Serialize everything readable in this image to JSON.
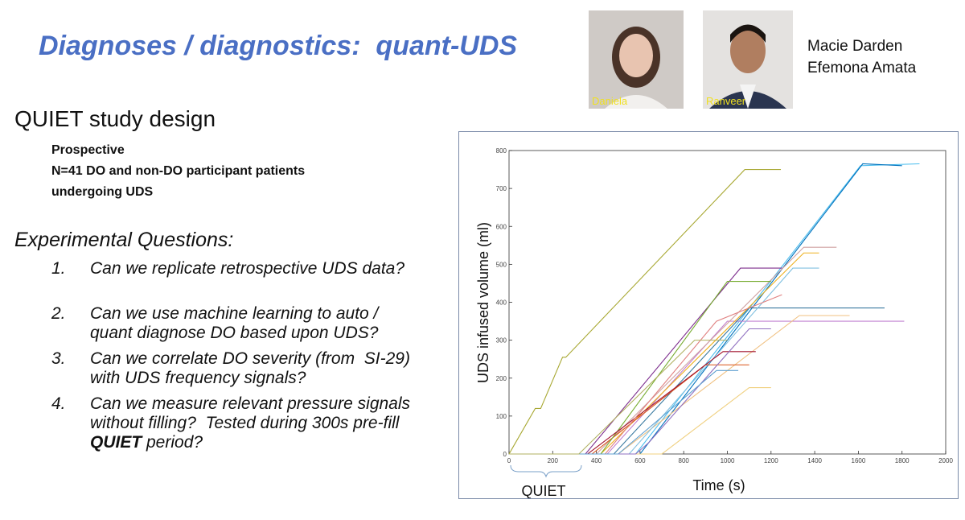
{
  "title": "Diagnoses / diagnostics:  quant-UDS",
  "photos": [
    {
      "label": "Daniela"
    },
    {
      "label": "Ranveer"
    }
  ],
  "authors": [
    "Macie Darden",
    "Efemona Amata"
  ],
  "study": {
    "heading": "QUIET study design",
    "items": [
      "Prospective",
      "N=41 DO and non-DO participant patients",
      "undergoing  UDS"
    ]
  },
  "questions": {
    "heading": "Experimental Questions:",
    "items": [
      {
        "number": "1.",
        "parts": [
          "Can we replicate retrospective UDS data?"
        ]
      },
      {
        "number": "2.",
        "parts": [
          "Can we use machine learning to auto / quant diagnose DO based upon UDS?"
        ]
      },
      {
        "number": "3.",
        "parts": [
          "Can we correlate DO severity (from  SI-29) with UDS frequency signals?"
        ]
      },
      {
        "number": "4.",
        "parts": [
          "Can we measure relevant pressure signals without filling?  Tested during 300s pre-fill ",
          "QUIET",
          " period?"
        ]
      }
    ]
  },
  "chart_data": {
    "type": "line",
    "x_label": "Time (s)",
    "y_label": "UDS infused volume (ml)",
    "annotation": "QUIET",
    "xlim": [
      0,
      2000
    ],
    "ylim": [
      0,
      800
    ],
    "xticks": [
      0,
      200,
      400,
      600,
      800,
      1000,
      1200,
      1400,
      1600,
      1800,
      2000
    ],
    "yticks": [
      0,
      100,
      200,
      300,
      400,
      500,
      600,
      700,
      800
    ],
    "series": [
      {
        "color": "#a8a832",
        "x": [
          0,
          120,
          145,
          245,
          260,
          1080,
          1245
        ],
        "values": [
          0,
          120,
          120,
          255,
          255,
          750,
          750
        ]
      },
      {
        "color": "#4dbeee",
        "x": [
          0,
          580,
          1610,
          1880
        ],
        "values": [
          0,
          0,
          760,
          765
        ]
      },
      {
        "color": "#0072bd",
        "x": [
          0,
          600,
          1620,
          1800
        ],
        "values": [
          0,
          0,
          765,
          760
        ]
      },
      {
        "color": "#c080d0",
        "x": [
          0,
          450,
          1000,
          1810
        ],
        "values": [
          0,
          0,
          350,
          350
        ]
      },
      {
        "color": "#3a7aa0",
        "x": [
          0,
          480,
          1100,
          1720
        ],
        "values": [
          0,
          0,
          385,
          385
        ]
      },
      {
        "color": "#edb120",
        "x": [
          0,
          420,
          1350,
          1420
        ],
        "values": [
          0,
          0,
          530,
          530
        ]
      },
      {
        "color": "#d0a0a0",
        "x": [
          0,
          400,
          1350,
          1500
        ],
        "values": [
          0,
          0,
          545,
          545
        ]
      },
      {
        "color": "#7e2f8e",
        "x": [
          0,
          350,
          1060,
          1250
        ],
        "values": [
          0,
          0,
          490,
          490
        ]
      },
      {
        "color": "#f0c080",
        "x": [
          0,
          500,
          1330,
          1560
        ],
        "values": [
          0,
          0,
          365,
          365
        ]
      },
      {
        "color": "#80c0e0",
        "x": [
          0,
          550,
          1300,
          1420
        ],
        "values": [
          0,
          0,
          490,
          490
        ]
      },
      {
        "color": "#d95319",
        "x": [
          0,
          380,
          900,
          1100
        ],
        "values": [
          0,
          0,
          235,
          235
        ]
      },
      {
        "color": "#77ac30",
        "x": [
          0,
          420,
          1000,
          1200
        ],
        "values": [
          0,
          0,
          455,
          455
        ]
      },
      {
        "color": "#a2142f",
        "x": [
          0,
          360,
          980,
          1130
        ],
        "values": [
          0,
          0,
          270,
          270
        ]
      },
      {
        "color": "#f0d080",
        "x": [
          0,
          700,
          1100,
          1200
        ],
        "values": [
          0,
          0,
          175,
          175
        ]
      },
      {
        "color": "#9070c0",
        "x": [
          0,
          580,
          640,
          1100,
          1200
        ],
        "values": [
          0,
          0,
          30,
          330,
          330
        ]
      },
      {
        "color": "#e08080",
        "x": [
          0,
          440,
          950,
          1250
        ],
        "values": [
          0,
          0,
          350,
          420
        ]
      },
      {
        "color": "#60a0d0",
        "x": [
          0,
          500,
          950,
          1050
        ],
        "values": [
          0,
          0,
          220,
          220
        ]
      },
      {
        "color": "#b0b060",
        "x": [
          0,
          320,
          850,
          1000
        ],
        "values": [
          0,
          0,
          300,
          300
        ]
      }
    ]
  }
}
